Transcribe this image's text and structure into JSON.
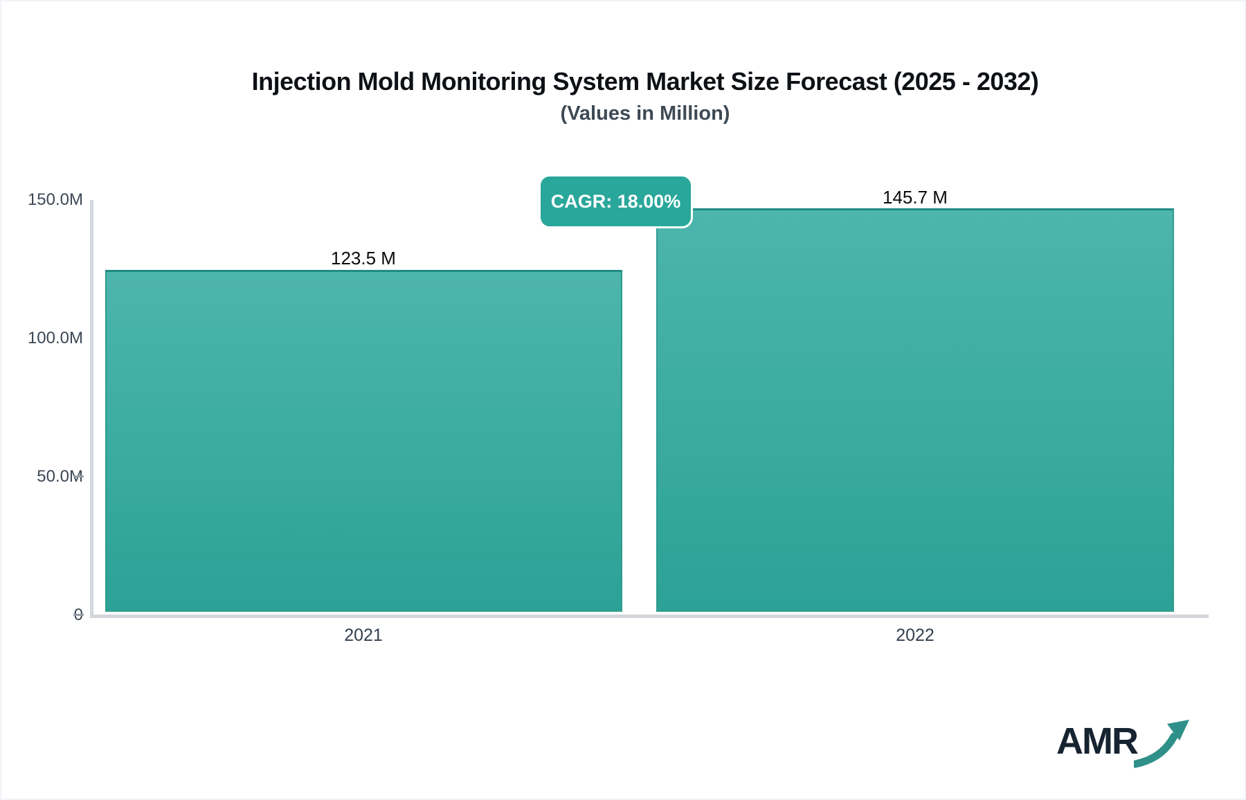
{
  "chart_data": {
    "type": "bar",
    "title": "Injection Mold Monitoring System Market Size Forecast (2025 - 2032)",
    "subtitle": "(Values in Million)",
    "categories": [
      "2021",
      "2022"
    ],
    "values": [
      123.5,
      145.7
    ],
    "value_labels": [
      "123.5 M",
      "145.7 M"
    ],
    "unit": "Million",
    "ylim": [
      0,
      150
    ],
    "y_tick_labels": [
      "150.0M",
      "100.0M",
      "50.0M",
      "0"
    ],
    "grid": false,
    "legend_position": "none",
    "annotation": "CAGR: 18.00%",
    "bar_color_top": "#4db5ac",
    "bar_color_bottom": "#2ca195",
    "bar_border_color": "#1f8b83",
    "axis_line_color": "#d3d7dc"
  },
  "badge": {
    "label": "CAGR: 18.00%",
    "background": "#2aa79b",
    "text_color": "#ffffff"
  },
  "logo": {
    "text": "AMR",
    "text_color": "#162330",
    "arrow_color": "#2e9089"
  }
}
